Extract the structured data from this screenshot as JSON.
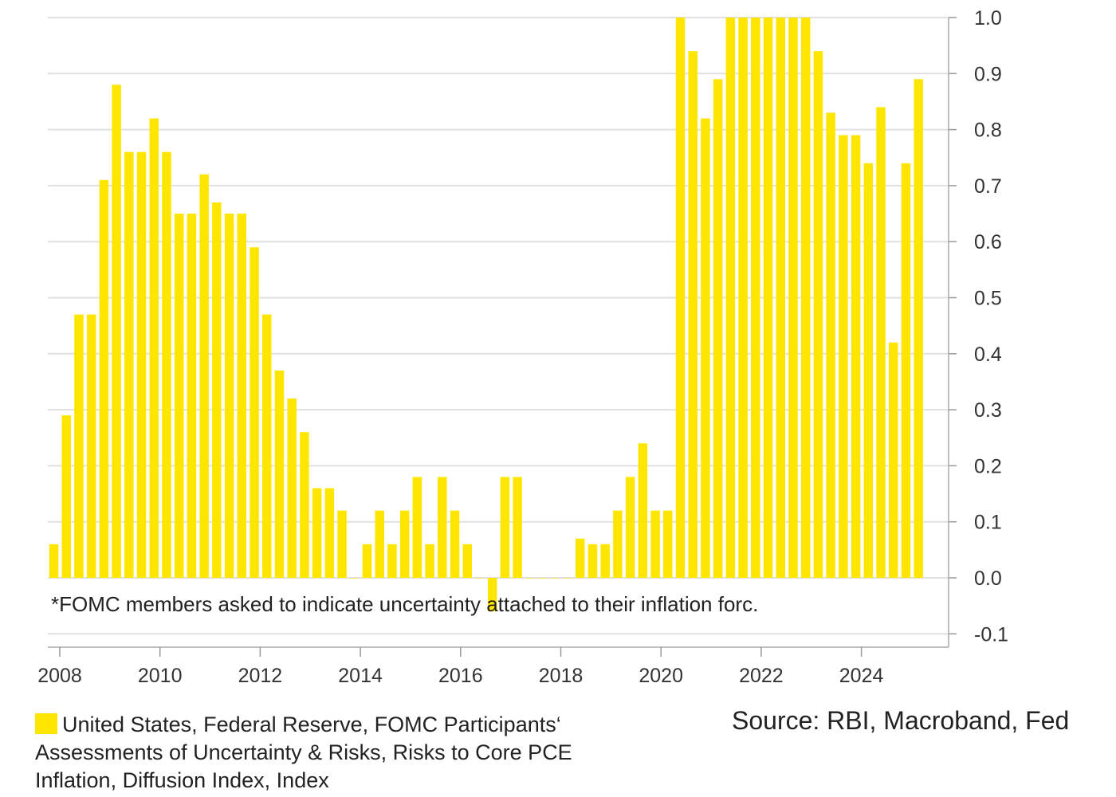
{
  "chart_data": {
    "type": "bar",
    "title": "",
    "xlabel": "",
    "ylabel": "",
    "ylim": [
      -0.1,
      1.0
    ],
    "y_ticks": [
      "-0.1",
      "0.0",
      "0.1",
      "0.2",
      "0.3",
      "0.4",
      "0.5",
      "0.6",
      "0.7",
      "0.8",
      "0.9",
      "1.0"
    ],
    "x_ticks": [
      "2008",
      "2010",
      "2012",
      "2014",
      "2016",
      "2018",
      "2020",
      "2022",
      "2024"
    ],
    "y_axis_side": "right",
    "grid": true,
    "color": "#FFE600",
    "categories": [
      "2008Q1",
      "2008Q2",
      "2008Q3",
      "2008Q4",
      "2009Q1",
      "2009Q2",
      "2009Q3",
      "2009Q4",
      "2010Q1",
      "2010Q2",
      "2010Q3",
      "2010Q4",
      "2011Q1",
      "2011Q2",
      "2011Q3",
      "2011Q4",
      "2012Q1",
      "2012Q2",
      "2012Q3",
      "2012Q4",
      "2013Q1",
      "2013Q2",
      "2013Q3",
      "2013Q4",
      "2014Q1",
      "2014Q2",
      "2014Q3",
      "2014Q4",
      "2015Q1",
      "2015Q2",
      "2015Q3",
      "2015Q4",
      "2016Q1",
      "2016Q2",
      "2016Q3",
      "2016Q4",
      "2017Q1",
      "2017Q2",
      "2017Q3",
      "2017Q4",
      "2018Q1",
      "2018Q2",
      "2018Q3",
      "2018Q4",
      "2019Q1",
      "2019Q2",
      "2019Q3",
      "2019Q4",
      "2020Q1",
      "2020Q2",
      "2020Q3",
      "2020Q4",
      "2021Q1",
      "2021Q2",
      "2021Q3",
      "2021Q4",
      "2022Q1",
      "2022Q2",
      "2022Q3",
      "2022Q4",
      "2023Q1",
      "2023Q2",
      "2023Q3",
      "2023Q4",
      "2024Q1",
      "2024Q2",
      "2024Q3",
      "2024Q4",
      "2025Q1",
      "2025Q2"
    ],
    "series": [
      {
        "name": "United States, Federal Reserve, FOMC Participants‘ Assessments of Uncertainty & Risks, Risks to Core PCE Inflation, Diffusion Index, Index",
        "values": [
          0.06,
          0.29,
          0.47,
          0.47,
          0.71,
          0.88,
          0.76,
          0.76,
          0.82,
          0.76,
          0.65,
          0.65,
          0.72,
          0.67,
          0.65,
          0.65,
          0.59,
          0.47,
          0.37,
          0.32,
          0.26,
          0.16,
          0.16,
          0.12,
          0.0,
          0.06,
          0.12,
          0.06,
          0.12,
          0.18,
          0.06,
          0.18,
          0.12,
          0.06,
          0.0,
          -0.06,
          0.18,
          0.18,
          0.0,
          0.0,
          0.0,
          0.0,
          0.07,
          0.06,
          0.06,
          0.12,
          0.18,
          0.24,
          0.12,
          0.12,
          1.0,
          0.94,
          0.82,
          0.89,
          1.0,
          1.0,
          1.0,
          1.0,
          1.0,
          1.0,
          1.0,
          0.94,
          0.83,
          0.79,
          0.79,
          0.74,
          0.84,
          0.42,
          0.74,
          0.89
        ]
      }
    ],
    "annotation": "*FOMC members asked to indicate uncertainty attached to their inflation forc.",
    "legend_position": "bottom-left"
  },
  "source": "Source: RBI, Macroband, Fed"
}
